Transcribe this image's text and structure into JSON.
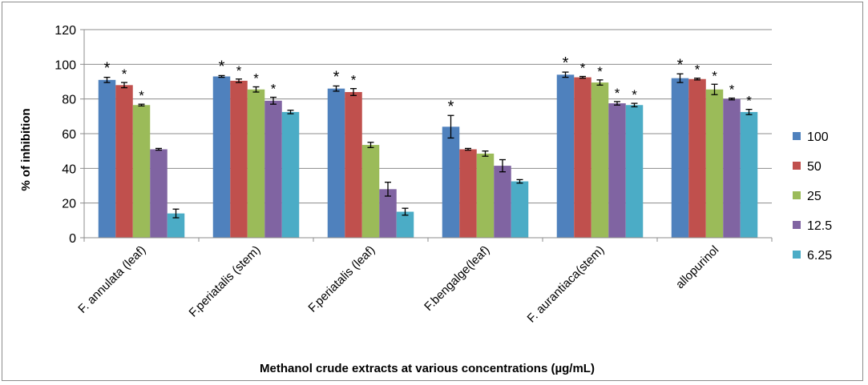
{
  "chart_data": {
    "type": "bar",
    "title": "",
    "xlabel": "Methanol crude extracts at various concentrations (µg/mL)",
    "ylabel": "% of inhibition",
    "ylim": [
      0,
      120
    ],
    "yticks": [
      "0",
      "20",
      "40",
      "60",
      "80",
      "100",
      "120"
    ],
    "grid": "horizontal",
    "legend_position": "right",
    "categories": [
      "F. annulata (leaf)",
      "F.periatalis (stem)",
      "F.periatalis (leaf)",
      "F.bengalge(leaf)",
      "F. aurantiaca(stem)",
      "allopurinol"
    ],
    "series": [
      {
        "name": "100",
        "color": "#4f81bd",
        "values": [
          91,
          93,
          86,
          64,
          94,
          92
        ],
        "errors": [
          1.5,
          0.5,
          1.5,
          6.5,
          1.5,
          2.5
        ]
      },
      {
        "name": "50",
        "color": "#c0504d",
        "values": [
          88,
          90.5,
          84,
          51,
          92.5,
          91.5
        ],
        "errors": [
          1.5,
          1,
          2,
          0.5,
          0.5,
          0.5
        ]
      },
      {
        "name": "25",
        "color": "#9bbb59",
        "values": [
          76.5,
          85.5,
          53.5,
          48.5,
          89.5,
          85.5
        ],
        "errors": [
          0.5,
          1.5,
          1.5,
          1.5,
          1.5,
          3
        ]
      },
      {
        "name": "12.5",
        "color": "#8064a2",
        "values": [
          51,
          79,
          28,
          41.5,
          77.5,
          80
        ],
        "errors": [
          0.5,
          2,
          4,
          3.5,
          1,
          0.5
        ]
      },
      {
        "name": "6.25",
        "color": "#4bacc6",
        "values": [
          14,
          72.5,
          15,
          32.5,
          76.5,
          72.5
        ],
        "errors": [
          2.5,
          1,
          2,
          1,
          1,
          1.5
        ]
      }
    ],
    "annotations": {
      "significance_marker": "*",
      "marked": [
        [
          true,
          true,
          true,
          false,
          false
        ],
        [
          true,
          true,
          true,
          true,
          false
        ],
        [
          true,
          true,
          false,
          false,
          false
        ],
        [
          true,
          false,
          false,
          false,
          false
        ],
        [
          true,
          true,
          true,
          true,
          true
        ],
        [
          true,
          true,
          true,
          true,
          true
        ]
      ]
    }
  }
}
